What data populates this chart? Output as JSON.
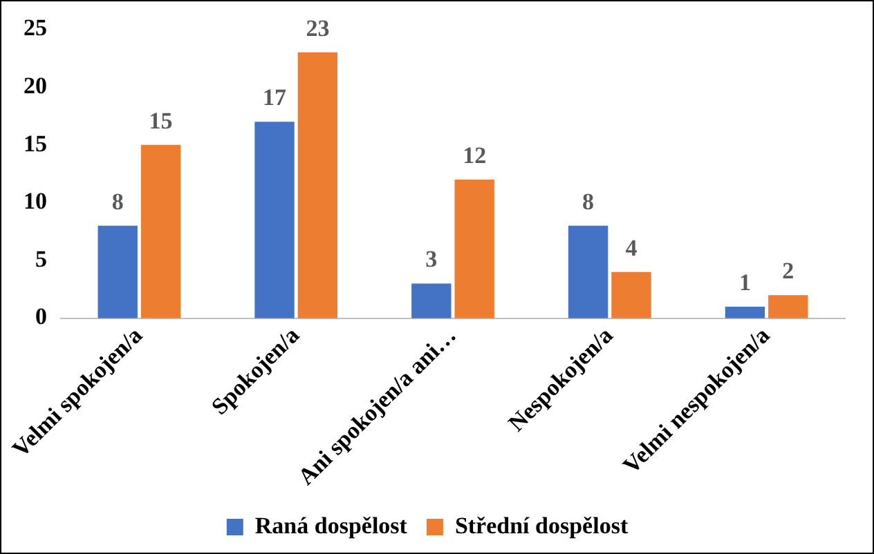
{
  "chart_data": {
    "type": "bar",
    "categories": [
      "Velmi spokojen/a",
      "Spokojen/a",
      "Ani spokojen/a ani…",
      "Nespokojen/a",
      "Velmi nespokojen/a"
    ],
    "series": [
      {
        "name": "Raná dospělost",
        "color": "#4472c4",
        "values": [
          8,
          17,
          3,
          8,
          1
        ]
      },
      {
        "name": "Střední dospělost",
        "color": "#ed7d31",
        "values": [
          15,
          23,
          12,
          4,
          2
        ]
      }
    ],
    "ylim": [
      0,
      25
    ],
    "yticks": [
      0,
      5,
      10,
      15,
      20,
      25
    ],
    "grid": false,
    "legend": "bottom",
    "data_labels": true
  }
}
